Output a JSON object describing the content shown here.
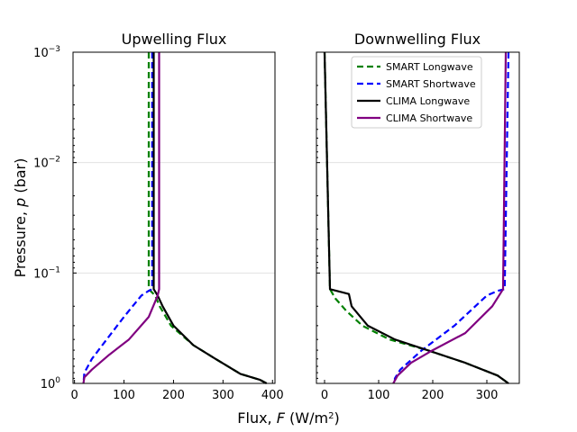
{
  "chart_data": [
    {
      "type": "line",
      "title": "Upwelling Flux",
      "xlabel": "",
      "ylabel_main": "Pressure, ",
      "ylabel_var": "p",
      "ylabel_unit": " (bar)",
      "xlim": [
        -3,
        405
      ],
      "ylim": [
        1,
        0.001
      ],
      "yscale": "log",
      "xticks": [
        0,
        100,
        200,
        300,
        400
      ],
      "yticks": [
        {
          "value": 1,
          "base": "10",
          "exp": "0"
        },
        {
          "value": 0.1,
          "base": "10",
          "exp": "−1"
        },
        {
          "value": 0.01,
          "base": "10",
          "exp": "−2"
        },
        {
          "value": 0.001,
          "base": "10",
          "exp": "−3"
        }
      ],
      "series": [
        {
          "name": "SMART Longwave",
          "color": "#008000",
          "dash": "dashed",
          "points": [
            [
              150,
              0.001
            ],
            [
              150,
              0.14
            ],
            [
              163,
              0.16
            ],
            [
              172,
              0.2
            ],
            [
              195,
              0.3
            ],
            [
              240,
              0.45
            ],
            [
              285,
              0.6
            ],
            [
              335,
              0.82
            ],
            [
              375,
              0.93
            ],
            [
              388,
              1.0
            ]
          ]
        },
        {
          "name": "SMART Shortwave",
          "color": "#0000ff",
          "dash": "dashed",
          "points": [
            [
              157,
              0.001
            ],
            [
              157,
              0.14
            ],
            [
              150,
              0.145
            ],
            [
              135,
              0.16
            ],
            [
              100,
              0.25
            ],
            [
              65,
              0.4
            ],
            [
              35,
              0.6
            ],
            [
              20,
              0.8
            ],
            [
              18,
              1.0
            ]
          ]
        },
        {
          "name": "CLIMA Longwave",
          "color": "#000000",
          "dash": "solid",
          "points": [
            [
              160,
              0.001
            ],
            [
              160,
              0.14
            ],
            [
              168,
              0.16
            ],
            [
              178,
              0.2
            ],
            [
              200,
              0.3
            ],
            [
              240,
              0.45
            ],
            [
              285,
              0.6
            ],
            [
              335,
              0.82
            ],
            [
              375,
              0.93
            ],
            [
              388,
              1.0
            ]
          ]
        },
        {
          "name": "CLIMA Shortwave",
          "color": "#800080",
          "dash": "solid",
          "points": [
            [
              171,
              0.001
            ],
            [
              171,
              0.14
            ],
            [
              168,
              0.16
            ],
            [
              150,
              0.25
            ],
            [
              110,
              0.4
            ],
            [
              70,
              0.55
            ],
            [
              35,
              0.75
            ],
            [
              20,
              0.88
            ],
            [
              18,
              1.0
            ]
          ]
        }
      ]
    },
    {
      "type": "line",
      "title": "Downwelling Flux",
      "xlabel": "",
      "xlim": [
        -15,
        360
      ],
      "ylim": [
        1,
        0.001
      ],
      "yscale": "log",
      "xticks": [
        0,
        100,
        200,
        300
      ],
      "legend": {
        "position": "top-center"
      },
      "series": [
        {
          "name": "SMART Longwave",
          "color": "#008000",
          "dash": "dashed",
          "points": [
            [
              0,
              0.001
            ],
            [
              10,
              0.14
            ],
            [
              20,
              0.17
            ],
            [
              40,
              0.22
            ],
            [
              70,
              0.3
            ],
            [
              120,
              0.4
            ],
            [
              190,
              0.5
            ],
            [
              260,
              0.65
            ],
            [
              320,
              0.85
            ],
            [
              340,
              1.0
            ]
          ]
        },
        {
          "name": "SMART Shortwave",
          "color": "#0000ff",
          "dash": "dashed",
          "points": [
            [
              340,
              0.001
            ],
            [
              333,
              0.14
            ],
            [
              320,
              0.145
            ],
            [
              300,
              0.16
            ],
            [
              240,
              0.3
            ],
            [
              180,
              0.5
            ],
            [
              140,
              0.75
            ],
            [
              130,
              0.9
            ],
            [
              130,
              1.0
            ]
          ]
        },
        {
          "name": "CLIMA Longwave",
          "color": "#000000",
          "dash": "solid",
          "points": [
            [
              0,
              0.001
            ],
            [
              10,
              0.14
            ],
            [
              45,
              0.155
            ],
            [
              50,
              0.2
            ],
            [
              80,
              0.3
            ],
            [
              130,
              0.4
            ],
            [
              190,
              0.5
            ],
            [
              260,
              0.65
            ],
            [
              320,
              0.85
            ],
            [
              340,
              1.0
            ]
          ]
        },
        {
          "name": "CLIMA Shortwave",
          "color": "#800080",
          "dash": "solid",
          "points": [
            [
              335,
              0.001
            ],
            [
              330,
              0.14
            ],
            [
              310,
              0.2
            ],
            [
              260,
              0.35
            ],
            [
              200,
              0.5
            ],
            [
              160,
              0.65
            ],
            [
              135,
              0.85
            ],
            [
              127,
              1.0
            ]
          ]
        }
      ]
    }
  ],
  "figure": {
    "xlabel_main": "Flux, ",
    "xlabel_var": "F",
    "xlabel_unit": " (W/m",
    "xlabel_sup": "2",
    "xlabel_close": ")"
  }
}
